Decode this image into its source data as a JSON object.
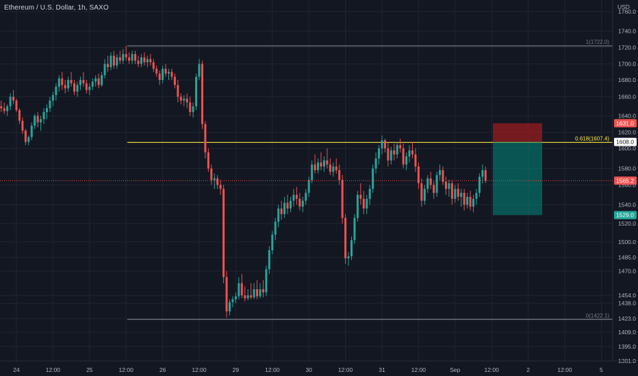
{
  "header": {
    "title": "Ethereum / U.S. Dollar, 1h, SAXO",
    "currency": "USD"
  },
  "chart_data": {
    "type": "candlestick",
    "ylim": [
      1375,
      1776
    ],
    "xlim": [
      0,
      105
    ],
    "y_ticks": [
      {
        "label": "1760.0",
        "v": 1760
      },
      {
        "label": "1740.0",
        "v": 1740
      },
      {
        "label": "1720.0",
        "v": 1720
      },
      {
        "label": "1700.0",
        "v": 1700
      },
      {
        "label": "1680.0",
        "v": 1680
      },
      {
        "label": "1660.0",
        "v": 1660
      },
      {
        "label": "1640.0",
        "v": 1640
      },
      {
        "label": "1620.0",
        "v": 1620
      },
      {
        "label": "1600.0",
        "v": 1600
      },
      {
        "label": "1580.0",
        "v": 1580
      },
      {
        "label": "1560.0",
        "v": 1560
      },
      {
        "label": "1540.0",
        "v": 1540
      },
      {
        "label": "1520.0",
        "v": 1520
      },
      {
        "label": "1500.0",
        "v": 1500
      },
      {
        "label": "1485.0",
        "v": 1485
      },
      {
        "label": "1470.0",
        "v": 1470
      },
      {
        "label": "1454.0",
        "v": 1454
      },
      {
        "label": "1438.0",
        "v": 1438
      },
      {
        "label": "1423.0",
        "v": 1423
      },
      {
        "label": "1409.0",
        "v": 1409
      },
      {
        "label": "1395.0",
        "v": 1395
      },
      {
        "label": "1381.0",
        "v": 1381
      }
    ],
    "x_ticks": [
      {
        "label": "24",
        "x": 0
      },
      {
        "label": "12:00",
        "x": 6
      },
      {
        "label": "25",
        "x": 12
      },
      {
        "label": "12:00",
        "x": 18
      },
      {
        "label": "26",
        "x": 24
      },
      {
        "label": "12:00",
        "x": 30
      },
      {
        "label": "29",
        "x": 36
      },
      {
        "label": "12:00",
        "x": 42
      },
      {
        "label": "30",
        "x": 48
      },
      {
        "label": "12:00",
        "x": 54
      },
      {
        "label": "31",
        "x": 60
      },
      {
        "label": "12:00",
        "x": 66
      },
      {
        "label": "Sep",
        "x": 72
      },
      {
        "label": "12:00",
        "x": 78
      },
      {
        "label": "2",
        "x": 84
      },
      {
        "label": "12:00",
        "x": 90
      },
      {
        "label": "5",
        "x": 96
      }
    ],
    "colors": {
      "up": "#26a69a",
      "down": "#ef5350",
      "background": "#131722",
      "grid": "#1f2430",
      "axis_text": "#b2b5be"
    },
    "candles": [
      [
        -2.5,
        1650,
        1656,
        1644,
        1648
      ],
      [
        -2,
        1648,
        1654,
        1642,
        1645
      ],
      [
        -1.5,
        1645,
        1652,
        1640,
        1650
      ],
      [
        -1,
        1650,
        1664,
        1646,
        1660
      ],
      [
        -0.5,
        1660,
        1668,
        1652,
        1656
      ],
      [
        0,
        1656,
        1658,
        1644,
        1646
      ],
      [
        0.5,
        1646,
        1648,
        1630,
        1634
      ],
      [
        1,
        1634,
        1638,
        1618,
        1622
      ],
      [
        1.5,
        1622,
        1624,
        1604,
        1608
      ],
      [
        2,
        1608,
        1616,
        1604,
        1614
      ],
      [
        2.5,
        1614,
        1632,
        1610,
        1628
      ],
      [
        3,
        1628,
        1642,
        1624,
        1640
      ],
      [
        3.5,
        1640,
        1644,
        1626,
        1632
      ],
      [
        4,
        1632,
        1640,
        1622,
        1636
      ],
      [
        4.5,
        1636,
        1648,
        1630,
        1644
      ],
      [
        5,
        1644,
        1652,
        1636,
        1648
      ],
      [
        5.5,
        1648,
        1660,
        1644,
        1656
      ],
      [
        6,
        1656,
        1666,
        1650,
        1662
      ],
      [
        6.5,
        1662,
        1676,
        1656,
        1672
      ],
      [
        7,
        1672,
        1686,
        1666,
        1682
      ],
      [
        7.5,
        1682,
        1690,
        1668,
        1674
      ],
      [
        8,
        1674,
        1680,
        1664,
        1670
      ],
      [
        8.5,
        1670,
        1684,
        1666,
        1680
      ],
      [
        9,
        1680,
        1690,
        1672,
        1676
      ],
      [
        9.5,
        1676,
        1680,
        1662,
        1666
      ],
      [
        10,
        1666,
        1678,
        1660,
        1674
      ],
      [
        10.5,
        1674,
        1684,
        1668,
        1680
      ],
      [
        11,
        1680,
        1690,
        1672,
        1676
      ],
      [
        11.5,
        1676,
        1680,
        1664,
        1668
      ],
      [
        12,
        1668,
        1676,
        1662,
        1672
      ],
      [
        12.5,
        1672,
        1682,
        1668,
        1678
      ],
      [
        13,
        1678,
        1686,
        1672,
        1682
      ],
      [
        13.5,
        1682,
        1688,
        1670,
        1674
      ],
      [
        14,
        1674,
        1690,
        1672,
        1686
      ],
      [
        14.5,
        1686,
        1706,
        1682,
        1700
      ],
      [
        15,
        1700,
        1710,
        1690,
        1696
      ],
      [
        15.5,
        1696,
        1714,
        1692,
        1710
      ],
      [
        16,
        1710,
        1716,
        1694,
        1698
      ],
      [
        16.5,
        1698,
        1712,
        1694,
        1708
      ],
      [
        17,
        1708,
        1716,
        1700,
        1704
      ],
      [
        17.5,
        1704,
        1718,
        1700,
        1712
      ],
      [
        18,
        1712,
        1722,
        1704,
        1708
      ],
      [
        18.5,
        1708,
        1714,
        1700,
        1704
      ],
      [
        19,
        1704,
        1716,
        1700,
        1712
      ],
      [
        19.5,
        1712,
        1716,
        1700,
        1704
      ],
      [
        20,
        1704,
        1710,
        1696,
        1700
      ],
      [
        20.5,
        1700,
        1712,
        1696,
        1708
      ],
      [
        21,
        1708,
        1714,
        1698,
        1702
      ],
      [
        21.5,
        1702,
        1710,
        1696,
        1706
      ],
      [
        22,
        1706,
        1712,
        1698,
        1702
      ],
      [
        22.5,
        1702,
        1706,
        1690,
        1694
      ],
      [
        23,
        1694,
        1698,
        1684,
        1688
      ],
      [
        23.5,
        1688,
        1692,
        1674,
        1680
      ],
      [
        24,
        1680,
        1698,
        1676,
        1694
      ],
      [
        24.5,
        1694,
        1700,
        1684,
        1688
      ],
      [
        25,
        1688,
        1694,
        1680,
        1690
      ],
      [
        25.5,
        1690,
        1694,
        1680,
        1684
      ],
      [
        26,
        1684,
        1688,
        1670,
        1674
      ],
      [
        26.5,
        1674,
        1680,
        1654,
        1660
      ],
      [
        27,
        1660,
        1664,
        1652,
        1656
      ],
      [
        27.5,
        1656,
        1662,
        1650,
        1658
      ],
      [
        28,
        1658,
        1664,
        1648,
        1654
      ],
      [
        28.5,
        1654,
        1660,
        1640,
        1644
      ],
      [
        29,
        1644,
        1654,
        1638,
        1650
      ],
      [
        29.5,
        1650,
        1688,
        1646,
        1684
      ],
      [
        30,
        1684,
        1706,
        1680,
        1700
      ],
      [
        30.5,
        1700,
        1704,
        1624,
        1630
      ],
      [
        31,
        1630,
        1634,
        1590,
        1596
      ],
      [
        31.5,
        1596,
        1600,
        1576,
        1580
      ],
      [
        32,
        1580,
        1584,
        1560,
        1566
      ],
      [
        32.5,
        1566,
        1574,
        1556,
        1568
      ],
      [
        33,
        1568,
        1572,
        1556,
        1560
      ],
      [
        33.5,
        1560,
        1566,
        1550,
        1556
      ],
      [
        34,
        1556,
        1560,
        1462,
        1466
      ],
      [
        34.5,
        1466,
        1470,
        1424,
        1430
      ],
      [
        35,
        1430,
        1446,
        1426,
        1440
      ],
      [
        35.5,
        1440,
        1452,
        1434,
        1446
      ],
      [
        36,
        1446,
        1456,
        1438,
        1452
      ],
      [
        36.5,
        1452,
        1466,
        1446,
        1462
      ],
      [
        37,
        1462,
        1468,
        1448,
        1454
      ],
      [
        37.5,
        1454,
        1460,
        1442,
        1448
      ],
      [
        38,
        1448,
        1458,
        1444,
        1454
      ],
      [
        38.5,
        1454,
        1462,
        1446,
        1450
      ],
      [
        39,
        1450,
        1462,
        1446,
        1458
      ],
      [
        39.5,
        1458,
        1464,
        1446,
        1452
      ],
      [
        40,
        1452,
        1462,
        1448,
        1458
      ],
      [
        40.5,
        1458,
        1464,
        1450,
        1456
      ],
      [
        41,
        1456,
        1476,
        1452,
        1472
      ],
      [
        41.5,
        1472,
        1496,
        1468,
        1492
      ],
      [
        42,
        1492,
        1512,
        1488,
        1508
      ],
      [
        42.5,
        1508,
        1526,
        1502,
        1522
      ],
      [
        43,
        1522,
        1540,
        1516,
        1536
      ],
      [
        43.5,
        1536,
        1544,
        1524,
        1530
      ],
      [
        44,
        1530,
        1548,
        1526,
        1542
      ],
      [
        44.5,
        1542,
        1550,
        1530,
        1536
      ],
      [
        45,
        1536,
        1548,
        1532,
        1544
      ],
      [
        45.5,
        1544,
        1556,
        1538,
        1550
      ],
      [
        46,
        1550,
        1558,
        1540,
        1546
      ],
      [
        46.5,
        1546,
        1552,
        1534,
        1538
      ],
      [
        47,
        1538,
        1548,
        1532,
        1544
      ],
      [
        47.5,
        1544,
        1556,
        1540,
        1552
      ],
      [
        48,
        1552,
        1570,
        1548,
        1566
      ],
      [
        48.5,
        1566,
        1588,
        1562,
        1584
      ],
      [
        49,
        1584,
        1594,
        1574,
        1578
      ],
      [
        49.5,
        1578,
        1590,
        1574,
        1586
      ],
      [
        50,
        1586,
        1596,
        1578,
        1582
      ],
      [
        50.5,
        1582,
        1592,
        1576,
        1588
      ],
      [
        51,
        1588,
        1600,
        1580,
        1584
      ],
      [
        51.5,
        1584,
        1590,
        1572,
        1576
      ],
      [
        52,
        1576,
        1586,
        1570,
        1582
      ],
      [
        52.5,
        1582,
        1590,
        1574,
        1578
      ],
      [
        53,
        1578,
        1584,
        1560,
        1566
      ],
      [
        53.5,
        1566,
        1572,
        1520,
        1526
      ],
      [
        54,
        1526,
        1530,
        1478,
        1484
      ],
      [
        54.5,
        1484,
        1490,
        1476,
        1486
      ],
      [
        55,
        1486,
        1506,
        1482,
        1502
      ],
      [
        55.5,
        1502,
        1530,
        1498,
        1526
      ],
      [
        56,
        1526,
        1554,
        1522,
        1550
      ],
      [
        56.5,
        1550,
        1562,
        1540,
        1546
      ],
      [
        57,
        1546,
        1554,
        1530,
        1536
      ],
      [
        57.5,
        1536,
        1550,
        1530,
        1546
      ],
      [
        58,
        1546,
        1560,
        1540,
        1556
      ],
      [
        58.5,
        1556,
        1584,
        1552,
        1580
      ],
      [
        59,
        1580,
        1596,
        1574,
        1590
      ],
      [
        59.5,
        1590,
        1604,
        1584,
        1600
      ],
      [
        60,
        1600,
        1616,
        1594,
        1610
      ],
      [
        60.5,
        1610,
        1612,
        1596,
        1600
      ],
      [
        61,
        1600,
        1608,
        1582,
        1588
      ],
      [
        61.5,
        1588,
        1602,
        1584,
        1598
      ],
      [
        62,
        1598,
        1606,
        1588,
        1594
      ],
      [
        62.5,
        1594,
        1608,
        1590,
        1604
      ],
      [
        63,
        1604,
        1612,
        1596,
        1600
      ],
      [
        63.5,
        1600,
        1606,
        1580,
        1584
      ],
      [
        64,
        1584,
        1596,
        1578,
        1592
      ],
      [
        64.5,
        1592,
        1604,
        1586,
        1598
      ],
      [
        65,
        1598,
        1608,
        1590,
        1594
      ],
      [
        65.5,
        1594,
        1600,
        1576,
        1582
      ],
      [
        66,
        1582,
        1586,
        1556,
        1562
      ],
      [
        66.5,
        1562,
        1568,
        1538,
        1544
      ],
      [
        67,
        1544,
        1560,
        1540,
        1556
      ],
      [
        67.5,
        1556,
        1572,
        1552,
        1568
      ],
      [
        68,
        1568,
        1576,
        1556,
        1560
      ],
      [
        68.5,
        1560,
        1564,
        1546,
        1552
      ],
      [
        69,
        1552,
        1576,
        1548,
        1572
      ],
      [
        69.5,
        1572,
        1584,
        1566,
        1578
      ],
      [
        70,
        1578,
        1582,
        1560,
        1564
      ],
      [
        70.5,
        1564,
        1570,
        1550,
        1556
      ],
      [
        71,
        1556,
        1566,
        1548,
        1562
      ],
      [
        71.5,
        1562,
        1566,
        1540,
        1546
      ],
      [
        72,
        1546,
        1560,
        1542,
        1556
      ],
      [
        72.5,
        1556,
        1562,
        1544,
        1548
      ],
      [
        73,
        1548,
        1556,
        1538,
        1552
      ],
      [
        73.5,
        1552,
        1556,
        1534,
        1540
      ],
      [
        74,
        1540,
        1552,
        1536,
        1548
      ],
      [
        74.5,
        1548,
        1554,
        1534,
        1538
      ],
      [
        75,
        1538,
        1550,
        1532,
        1546
      ],
      [
        75.5,
        1546,
        1556,
        1540,
        1552
      ],
      [
        76,
        1552,
        1574,
        1548,
        1570
      ],
      [
        76.5,
        1570,
        1584,
        1562,
        1578
      ],
      [
        77,
        1578,
        1582,
        1562,
        1565.2
      ]
    ],
    "fib_levels": [
      {
        "label": "1(1722.0)",
        "price": 1722.0,
        "x_start": 18.2,
        "color": "#787b86"
      },
      {
        "label": "0.618(1607.4)",
        "price": 1607.4,
        "x_start": 18.2,
        "color": "#ffeb3b"
      },
      {
        "label": "0(1422.1)",
        "price": 1422.1,
        "x_start": 18.2,
        "color": "#787b86"
      }
    ],
    "position": {
      "x_start": 78.2,
      "x_end": 86.3,
      "stop": 1631.0,
      "entry": 1608.0,
      "target": 1529.0,
      "risk_color": "#b71c1c",
      "reward_color": "#00897b"
    },
    "price_labels": [
      {
        "text": "1631.0",
        "price": 1631.0,
        "bg": "#ef5350",
        "fg": "#ffffff"
      },
      {
        "text": "1608.0",
        "price": 1608.0,
        "bg": "#ffffff",
        "fg": "#131722"
      },
      {
        "text": "1565.2",
        "price": 1565.2,
        "bg": "#ef5350",
        "fg": "#ffffff"
      },
      {
        "text": "1529.0",
        "price": 1529.0,
        "bg": "#26a69a",
        "fg": "#ffffff"
      }
    ],
    "current_price": 1565.2
  }
}
